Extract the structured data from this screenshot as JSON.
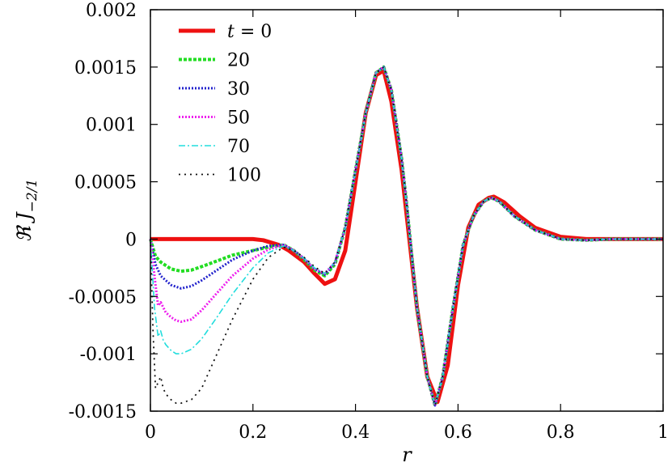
{
  "chart_data": {
    "type": "line",
    "xlabel": "r",
    "ylabel": "ℜ J",
    "ylabel_sub": "−2/1",
    "xlim": [
      0,
      1
    ],
    "ylim": [
      -0.0015,
      0.002
    ],
    "x_ticks": [
      0,
      0.2,
      0.4,
      0.6,
      0.8,
      1
    ],
    "x_tick_labels": [
      "0",
      "0.2",
      "0.4",
      "0.6",
      "0.8",
      "1"
    ],
    "y_ticks": [
      -0.0015,
      -0.001,
      -0.0005,
      0,
      0.0005,
      0.001,
      0.0015,
      0.002
    ],
    "y_tick_labels": [
      "-0.0015",
      "-0.001",
      "-0.0005",
      "0",
      "0.0005",
      "0.001",
      "0.0015",
      "0.002"
    ],
    "grid": false,
    "legend_position": "top-left",
    "series": [
      {
        "name": "t = 0",
        "color": "#ee1111",
        "dash": "solid",
        "x": [
          0,
          0.05,
          0.1,
          0.15,
          0.2,
          0.22,
          0.25,
          0.27,
          0.3,
          0.32,
          0.34,
          0.36,
          0.38,
          0.4,
          0.42,
          0.44,
          0.455,
          0.47,
          0.49,
          0.5,
          0.52,
          0.54,
          0.56,
          0.58,
          0.6,
          0.62,
          0.64,
          0.66,
          0.67,
          0.69,
          0.72,
          0.75,
          0.8,
          0.85,
          0.9,
          1
        ],
        "y": [
          0,
          0,
          0,
          0,
          0,
          -1e-05,
          -5e-05,
          -0.0001,
          -0.0002,
          -0.0003,
          -0.00039,
          -0.00035,
          -0.0001,
          0.0005,
          0.0011,
          0.00143,
          0.00147,
          0.0012,
          0.0006,
          0.0002,
          -0.0006,
          -0.0012,
          -0.00142,
          -0.0011,
          -0.0004,
          0.0001,
          0.0003,
          0.00036,
          0.00037,
          0.00032,
          0.0002,
          0.0001,
          2e-05,
          0,
          0,
          0
        ]
      },
      {
        "name": "20",
        "color": "#22dd22",
        "dash": "dashed",
        "x": [
          0,
          0.01,
          0.02,
          0.04,
          0.06,
          0.08,
          0.1,
          0.13,
          0.16,
          0.2,
          0.23,
          0.26,
          0.28,
          0.3,
          0.32,
          0.34,
          0.36,
          0.38,
          0.4,
          0.42,
          0.44,
          0.455,
          0.47,
          0.49,
          0.5,
          0.52,
          0.54,
          0.555,
          0.57,
          0.59,
          0.61,
          0.63,
          0.65,
          0.665,
          0.68,
          0.71,
          0.75,
          0.8,
          0.85,
          0.9,
          1
        ],
        "y": [
          0,
          -0.00015,
          -0.0002,
          -0.00026,
          -0.00028,
          -0.00027,
          -0.00024,
          -0.00019,
          -0.00014,
          -0.0001,
          -7e-05,
          -5e-05,
          -0.0001,
          -0.00018,
          -0.00027,
          -0.00032,
          -0.00022,
          0.0001,
          0.0006,
          0.0011,
          0.00145,
          0.0015,
          0.0013,
          0.0007,
          0.0003,
          -0.0006,
          -0.0012,
          -0.00145,
          -0.0012,
          -0.0006,
          -5e-05,
          0.0002,
          0.00033,
          0.00036,
          0.00033,
          0.0002,
          8e-05,
          0,
          -1e-05,
          0,
          0
        ]
      },
      {
        "name": "30",
        "color": "#2222cc",
        "dash": "dotted",
        "x": [
          0,
          0.01,
          0.02,
          0.04,
          0.06,
          0.08,
          0.1,
          0.13,
          0.16,
          0.2,
          0.23,
          0.26,
          0.28,
          0.3,
          0.32,
          0.34,
          0.36,
          0.38,
          0.4,
          0.42,
          0.44,
          0.455,
          0.47,
          0.49,
          0.5,
          0.52,
          0.54,
          0.555,
          0.57,
          0.59,
          0.61,
          0.63,
          0.65,
          0.665,
          0.68,
          0.71,
          0.75,
          0.8,
          0.85,
          0.9,
          1
        ],
        "y": [
          0,
          -0.00022,
          -0.00032,
          -0.0004,
          -0.00043,
          -0.00041,
          -0.00036,
          -0.00027,
          -0.00018,
          -0.0001,
          -6e-05,
          -5e-05,
          -0.0001,
          -0.00017,
          -0.00026,
          -0.00031,
          -0.00021,
          0.0001,
          0.0006,
          0.0011,
          0.00145,
          0.0015,
          0.0013,
          0.0007,
          0.0003,
          -0.0006,
          -0.0012,
          -0.00145,
          -0.0012,
          -0.0006,
          -5e-05,
          0.0002,
          0.00033,
          0.00036,
          0.00033,
          0.0002,
          8e-05,
          0,
          -1e-05,
          0,
          0
        ]
      },
      {
        "name": "50",
        "color": "#ee22ee",
        "dash": "dotted",
        "x": [
          0,
          0.01,
          0.015,
          0.02,
          0.03,
          0.04,
          0.05,
          0.06,
          0.08,
          0.1,
          0.13,
          0.16,
          0.2,
          0.23,
          0.26,
          0.28,
          0.3,
          0.32,
          0.34,
          0.36,
          0.38,
          0.4,
          0.42,
          0.44,
          0.455,
          0.47,
          0.49,
          0.5,
          0.52,
          0.54,
          0.555,
          0.57,
          0.59,
          0.61,
          0.63,
          0.65,
          0.665,
          0.68,
          0.71,
          0.75,
          0.8,
          0.85,
          0.9,
          1
        ],
        "y": [
          0,
          -0.0004,
          -0.00058,
          -0.00055,
          -0.00064,
          -0.00068,
          -0.00071,
          -0.00072,
          -0.0007,
          -0.00062,
          -0.00047,
          -0.00032,
          -0.00017,
          -9e-05,
          -5e-05,
          -0.0001,
          -0.00017,
          -0.00026,
          -0.0003,
          -0.0002,
          0.0001,
          0.0006,
          0.0011,
          0.00145,
          0.0015,
          0.0013,
          0.0007,
          0.0003,
          -0.0006,
          -0.0012,
          -0.00145,
          -0.0012,
          -0.0006,
          -5e-05,
          0.0002,
          0.00033,
          0.00036,
          0.00033,
          0.0002,
          8e-05,
          0,
          -1e-05,
          0,
          0
        ]
      },
      {
        "name": "70",
        "color": "#22dddd",
        "dash": "dashdot",
        "x": [
          0,
          0.008,
          0.015,
          0.02,
          0.025,
          0.03,
          0.04,
          0.05,
          0.06,
          0.08,
          0.1,
          0.13,
          0.16,
          0.2,
          0.23,
          0.26,
          0.28,
          0.3,
          0.32,
          0.34,
          0.36,
          0.38,
          0.4,
          0.42,
          0.44,
          0.455,
          0.47,
          0.49,
          0.5,
          0.52,
          0.54,
          0.555,
          0.57,
          0.59,
          0.61,
          0.63,
          0.65,
          0.665,
          0.68,
          0.71,
          0.75,
          0.8,
          0.85,
          0.9,
          1
        ],
        "y": [
          0,
          -0.0006,
          -0.00085,
          -0.0008,
          -0.00088,
          -0.00092,
          -0.00097,
          -0.001,
          -0.001,
          -0.00096,
          -0.00087,
          -0.00068,
          -0.00048,
          -0.00025,
          -0.00012,
          -6e-05,
          -0.0001,
          -0.00017,
          -0.00025,
          -0.0003,
          -0.0002,
          0.0001,
          0.0006,
          0.0011,
          0.00145,
          0.0015,
          0.0013,
          0.0007,
          0.0003,
          -0.0006,
          -0.0012,
          -0.00145,
          -0.0012,
          -0.0006,
          -5e-05,
          0.0002,
          0.00033,
          0.00036,
          0.00033,
          0.0002,
          8e-05,
          0,
          -1e-05,
          0,
          0
        ]
      },
      {
        "name": "100",
        "color": "#111111",
        "dash": "sparse",
        "x": [
          0,
          0.005,
          0.01,
          0.015,
          0.02,
          0.025,
          0.03,
          0.04,
          0.05,
          0.06,
          0.08,
          0.1,
          0.13,
          0.16,
          0.2,
          0.23,
          0.26,
          0.28,
          0.3,
          0.32,
          0.34,
          0.36,
          0.38,
          0.4,
          0.42,
          0.44,
          0.455,
          0.47,
          0.49,
          0.5,
          0.52,
          0.54,
          0.555,
          0.57,
          0.59,
          0.61,
          0.63,
          0.65,
          0.665,
          0.68,
          0.71,
          0.75,
          0.8,
          0.85,
          0.9,
          1
        ],
        "y": [
          0,
          -0.0008,
          -0.0013,
          -0.00125,
          -0.0012,
          -0.0013,
          -0.00135,
          -0.0014,
          -0.00143,
          -0.00143,
          -0.0014,
          -0.0013,
          -0.001,
          -0.0007,
          -0.00035,
          -0.00016,
          -7e-05,
          -0.0001,
          -0.00016,
          -0.00024,
          -0.0003,
          -0.0002,
          0.0001,
          0.0006,
          0.0011,
          0.00145,
          0.0015,
          0.0013,
          0.0007,
          0.0003,
          -0.0006,
          -0.0012,
          -0.00145,
          -0.0012,
          -0.0006,
          -5e-05,
          0.0002,
          0.00033,
          0.00036,
          0.00033,
          0.0002,
          8e-05,
          0,
          -1e-05,
          0,
          0
        ]
      }
    ]
  }
}
